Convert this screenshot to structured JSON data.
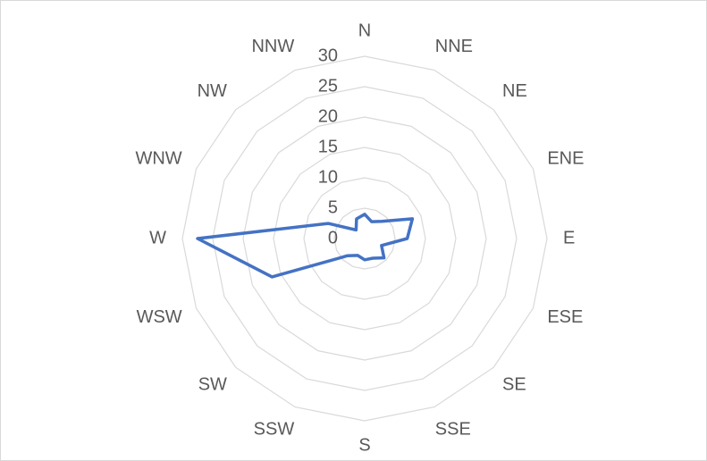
{
  "chart_data": {
    "type": "radar",
    "categories": [
      "N",
      "NNE",
      "NE",
      "ENE",
      "E",
      "ESE",
      "SE",
      "SSE",
      "S",
      "SSW",
      "SW",
      "WSW",
      "W",
      "WNW",
      "NW",
      "NNW"
    ],
    "series": [
      {
        "color": "#4472c4",
        "values": [
          4,
          3,
          4,
          8.5,
          7,
          3,
          4.5,
          3.5,
          3.5,
          3,
          4,
          16.5,
          27.5,
          6.5,
          2,
          3.5
        ]
      }
    ],
    "ylim": [
      0,
      30
    ],
    "yticks": [
      0,
      5,
      10,
      15,
      20,
      25,
      30
    ],
    "grid": true
  }
}
